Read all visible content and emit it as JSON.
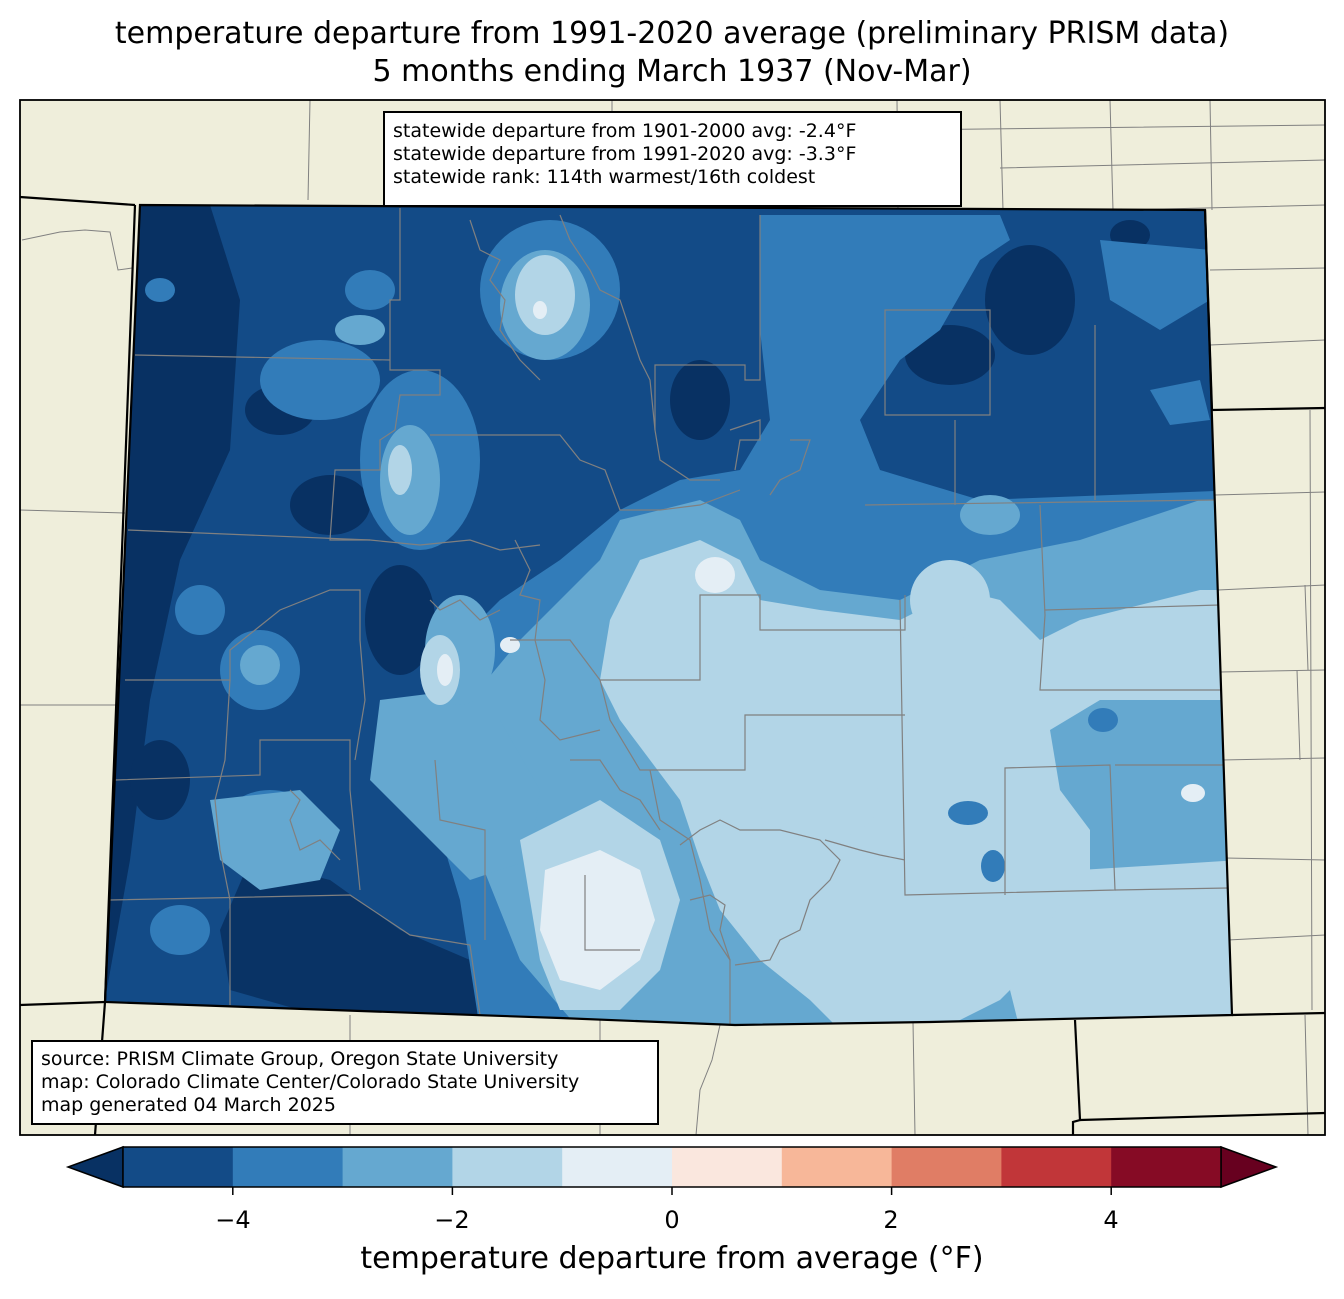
{
  "title": {
    "line1": "temperature departure from 1991-2020 average (preliminary PRISM data)",
    "line2": "5 months ending March 1937 (Nov-Mar)"
  },
  "stats": {
    "dep_1901_2000": "statewide departure from 1901-2000 avg: -2.4°F",
    "dep_1991_2020": "statewide departure from 1991-2020 avg: -3.3°F",
    "rank": "statewide rank: 114th warmest/16th coldest"
  },
  "credits": {
    "source": "source: PRISM Climate Group, Oregon State University",
    "map": "map: Colorado Climate Center/Colorado State University",
    "generated": "map generated 04 March 2025"
  },
  "colorbar": {
    "label": "temperature departure from average (°F)",
    "ticks": [
      "−4",
      "−2",
      "0",
      "2",
      "4"
    ],
    "bins": [
      {
        "from": -5,
        "to": -4,
        "color": "#134b87"
      },
      {
        "from": -4,
        "to": -3,
        "color": "#327cb9"
      },
      {
        "from": -3,
        "to": -2,
        "color": "#65a8d0"
      },
      {
        "from": -2,
        "to": -1,
        "color": "#b2d5e7"
      },
      {
        "from": -1,
        "to": 0,
        "color": "#e4eef5"
      },
      {
        "from": 0,
        "to": 1,
        "color": "#fae7de"
      },
      {
        "from": 1,
        "to": 2,
        "color": "#f7b799"
      },
      {
        "from": 2,
        "to": 3,
        "color": "#e07d65"
      },
      {
        "from": 3,
        "to": 4,
        "color": "#c13639"
      },
      {
        "from": 4,
        "to": 5,
        "color": "#860b25"
      }
    ],
    "under_color": "#083163",
    "over_color": "#67001f"
  },
  "map_colors": {
    "land": "#efeedb",
    "county_lines": "#808080",
    "state_lines": "#000000"
  }
}
